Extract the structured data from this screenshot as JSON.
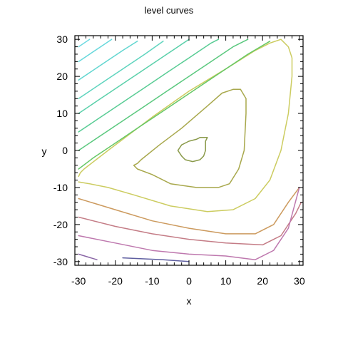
{
  "chart_data": {
    "type": "contour",
    "title": "level curves",
    "xlabel": "x",
    "ylabel": "y",
    "xlim": [
      -31,
      31
    ],
    "ylim": [
      -31,
      31
    ],
    "xticks": [
      -30,
      -20,
      -10,
      0,
      10,
      20,
      30
    ],
    "yticks": [
      -30,
      -20,
      -10,
      0,
      10,
      20,
      30
    ],
    "xtick_labels": [
      "-30",
      "-20",
      "-10",
      "0",
      "10",
      "20",
      "30"
    ],
    "ytick_labels": [
      "-30",
      "-20",
      "-10",
      "0",
      "10",
      "20",
      "30"
    ],
    "minor_ticks_per_major": 5,
    "grid": false,
    "curves": [
      {
        "color": "#8a9a4a",
        "points": [
          [
            -3,
            0
          ],
          [
            -2,
            1.5
          ],
          [
            0,
            2.5
          ],
          [
            2,
            3
          ],
          [
            3,
            3.5
          ],
          [
            4,
            3.5
          ],
          [
            5,
            3.5
          ],
          [
            4.5,
            2.5
          ],
          [
            4.5,
            0
          ],
          [
            4,
            -1.5
          ],
          [
            3,
            -2.5
          ],
          [
            1,
            -3
          ],
          [
            -1,
            -2.5
          ],
          [
            -2,
            -1.5
          ],
          [
            -3,
            0
          ]
        ]
      },
      {
        "color": "#a8a84c",
        "points": [
          [
            -15,
            -4
          ],
          [
            -14,
            -3.5
          ],
          [
            -13,
            -2.5
          ],
          [
            -8,
            1.5
          ],
          [
            -2,
            6
          ],
          [
            5,
            12
          ],
          [
            9,
            15.5
          ],
          [
            12,
            16.5
          ],
          [
            14,
            16.5
          ],
          [
            15.5,
            14
          ],
          [
            15.5,
            10
          ],
          [
            15,
            0
          ],
          [
            13.5,
            -5
          ],
          [
            11,
            -9
          ],
          [
            8,
            -10
          ],
          [
            2,
            -10
          ],
          [
            -5,
            -9
          ],
          [
            -10,
            -6.5
          ],
          [
            -14,
            -5
          ],
          [
            -15,
            -4
          ]
        ]
      },
      {
        "color": "#cccc60",
        "points": [
          [
            -30,
            -7
          ],
          [
            -29.5,
            -6
          ],
          [
            -28.5,
            -5
          ],
          [
            -22,
            0
          ],
          [
            -10,
            9
          ],
          [
            0,
            16
          ],
          [
            10,
            22
          ],
          [
            18,
            27
          ],
          [
            22,
            29
          ],
          [
            25,
            30
          ],
          [
            27,
            28
          ],
          [
            28,
            25
          ],
          [
            28,
            20
          ],
          [
            27,
            10
          ],
          [
            25,
            0
          ],
          [
            22,
            -8
          ],
          [
            18,
            -13
          ],
          [
            12,
            -16
          ],
          [
            5,
            -16.5
          ],
          [
            -5,
            -15
          ],
          [
            -15,
            -12
          ],
          [
            -22,
            -10
          ],
          [
            -27,
            -9
          ],
          [
            -30,
            -8.5
          ]
        ]
      },
      {
        "color": "#cc9a5e",
        "points": [
          [
            -30,
            -13
          ],
          [
            -20,
            -16
          ],
          [
            -10,
            -19
          ],
          [
            0,
            -21
          ],
          [
            10,
            -22.5
          ],
          [
            18,
            -22.5
          ],
          [
            23,
            -20
          ],
          [
            27,
            -14
          ],
          [
            30,
            -10
          ]
        ]
      },
      {
        "color": "#c47c86",
        "points": [
          [
            -30,
            -18
          ],
          [
            -20,
            -20.5
          ],
          [
            -10,
            -22.5
          ],
          [
            0,
            -24
          ],
          [
            10,
            -25
          ],
          [
            20,
            -25.5
          ],
          [
            25,
            -23
          ],
          [
            29,
            -17
          ],
          [
            30.5,
            -14
          ]
        ]
      },
      {
        "color": "#be78ae",
        "points": [
          [
            -30,
            -23
          ],
          [
            -20,
            -25
          ],
          [
            -10,
            -27
          ],
          [
            0,
            -28
          ],
          [
            10,
            -28.5
          ],
          [
            18,
            -29.5
          ],
          [
            23,
            -27
          ],
          [
            27,
            -21
          ],
          [
            30,
            -10
          ]
        ]
      },
      {
        "color": "#8a66a6",
        "points": [
          [
            -30,
            -28
          ],
          [
            -25,
            -29.5
          ]
        ]
      },
      {
        "color": "#5e5ea0",
        "points": [
          [
            -18,
            -29
          ],
          [
            -7,
            -29.5
          ],
          [
            0,
            -30
          ]
        ]
      },
      {
        "color": "#66c866",
        "points": [
          [
            -30,
            -5
          ],
          [
            -26,
            -2
          ],
          [
            -20,
            2
          ],
          [
            -14,
            6
          ],
          [
            -8,
            10
          ],
          [
            -2,
            14
          ],
          [
            4,
            18
          ],
          [
            10,
            22
          ],
          [
            16,
            26
          ],
          [
            22,
            29.5
          ]
        ]
      },
      {
        "color": "#5ac87e",
        "points": [
          [
            -30,
            0
          ],
          [
            -24,
            4
          ],
          [
            -18,
            8
          ],
          [
            -12,
            12
          ],
          [
            -6,
            16
          ],
          [
            0,
            20
          ],
          [
            6,
            24
          ],
          [
            12,
            28
          ],
          [
            16,
            30
          ]
        ]
      },
      {
        "color": "#58cc94",
        "points": [
          [
            -30,
            5
          ],
          [
            -24,
            9
          ],
          [
            -18,
            13
          ],
          [
            -12,
            17
          ],
          [
            -6,
            21
          ],
          [
            0,
            25
          ],
          [
            6,
            29
          ],
          [
            8,
            30
          ]
        ]
      },
      {
        "color": "#5ad0aa",
        "points": [
          [
            -30,
            10
          ],
          [
            -24,
            14
          ],
          [
            -18,
            18
          ],
          [
            -12,
            22
          ],
          [
            -6,
            26
          ],
          [
            0,
            30
          ]
        ]
      },
      {
        "color": "#5ed4be",
        "points": [
          [
            -30,
            14
          ],
          [
            -24,
            18
          ],
          [
            -18,
            22
          ],
          [
            -12,
            26
          ],
          [
            -7,
            29.5
          ]
        ]
      },
      {
        "color": "#62d6d0",
        "points": [
          [
            -30,
            19
          ],
          [
            -24,
            23
          ],
          [
            -18,
            27
          ],
          [
            -14,
            29.5
          ]
        ]
      },
      {
        "color": "#68d8dc",
        "points": [
          [
            -30,
            24
          ],
          [
            -24,
            28
          ],
          [
            -21,
            30
          ]
        ]
      },
      {
        "color": "#70dae2",
        "points": [
          [
            -30,
            28
          ],
          [
            -27,
            30
          ]
        ]
      }
    ]
  }
}
